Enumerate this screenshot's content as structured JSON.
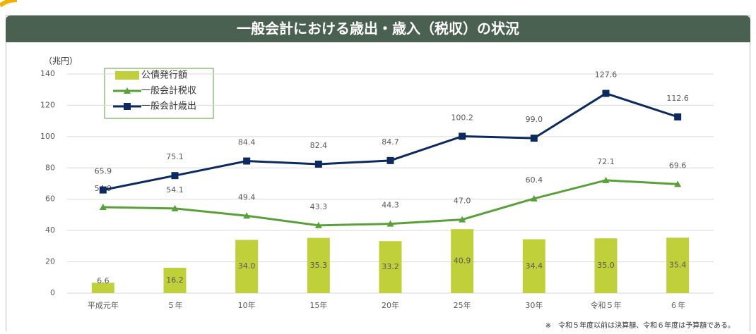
{
  "chart_data": {
    "type": "combo",
    "title": "一般会計における歳出・歳入（税収）の状況",
    "y_label": "（兆円）",
    "note": "※　令和５年度以前は決算額、令和６年度は予算額である。",
    "categories": [
      "平成元年",
      "５年",
      "10年",
      "15年",
      "20年",
      "25年",
      "30年",
      "令和５年",
      "６年"
    ],
    "series": [
      {
        "name": "公債発行額",
        "type": "bar",
        "color": "#c0d03a",
        "values": [
          6.6,
          16.2,
          34.0,
          35.3,
          33.2,
          40.9,
          34.4,
          35.0,
          35.4
        ],
        "value_labels": [
          "6.6",
          "16.2",
          "34.0",
          "35.3",
          "33.2",
          "40.9",
          "34.4",
          "35.0",
          "35.4"
        ]
      },
      {
        "name": "一般会計税収",
        "type": "line",
        "marker": "triangle",
        "color": "#5aa03a",
        "values": [
          54.9,
          54.1,
          49.4,
          43.3,
          44.3,
          47.0,
          60.4,
          72.1,
          69.6
        ],
        "value_labels": [
          "54.9",
          "54.1",
          "49.4",
          "43.3",
          "44.3",
          "47.0",
          "60.4",
          "72.1",
          "69.6"
        ]
      },
      {
        "name": "一般会計歳出",
        "type": "line",
        "marker": "square",
        "color": "#0d2a5e",
        "values": [
          65.9,
          75.1,
          84.4,
          82.4,
          84.7,
          100.2,
          99.0,
          127.6,
          112.6
        ],
        "value_labels": [
          "65.9",
          "75.1",
          "84.4",
          "82.4",
          "84.7",
          "100.2",
          "99.0",
          "127.6",
          "112.6"
        ]
      }
    ],
    "ylim": [
      0,
      140
    ],
    "yticks": [
      0,
      20,
      40,
      60,
      80,
      100,
      120,
      140
    ],
    "grid": true
  }
}
